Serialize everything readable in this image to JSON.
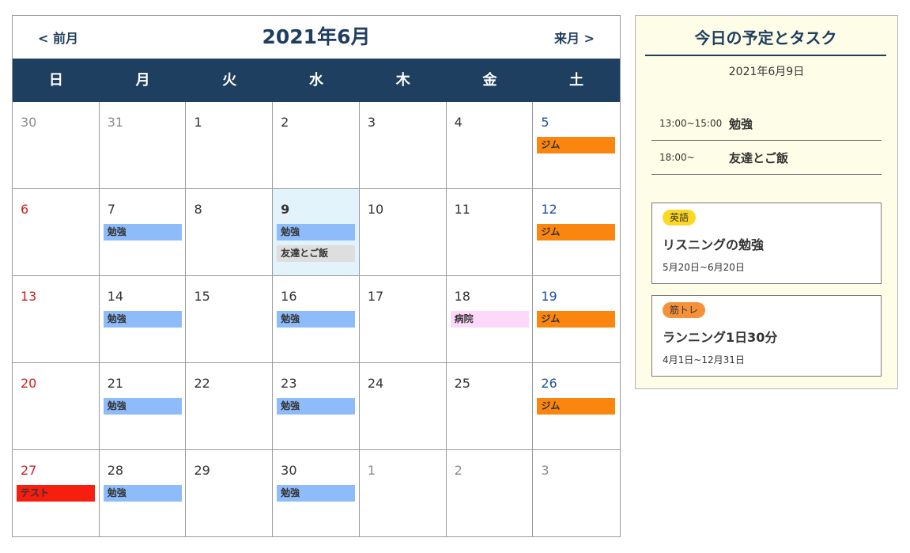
{
  "calendar": {
    "title": "2021年6月",
    "prev_label": "< 前月",
    "next_label": "来月 >",
    "weekdays": [
      "日",
      "月",
      "火",
      "水",
      "木",
      "金",
      "土"
    ],
    "weeks": [
      [
        {
          "day": "30",
          "other": true,
          "events": []
        },
        {
          "day": "31",
          "other": true,
          "events": []
        },
        {
          "day": "1",
          "events": []
        },
        {
          "day": "2",
          "events": []
        },
        {
          "day": "3",
          "events": []
        },
        {
          "day": "4",
          "events": []
        },
        {
          "day": "5",
          "events": [
            {
              "label": "ジム",
              "color": "#fb860f"
            }
          ]
        }
      ],
      [
        {
          "day": "6",
          "events": []
        },
        {
          "day": "7",
          "events": [
            {
              "label": "勉強",
              "color": "#8ebcfa"
            }
          ]
        },
        {
          "day": "8",
          "events": []
        },
        {
          "day": "9",
          "today": true,
          "events": [
            {
              "label": "勉強",
              "color": "#8ebcfa"
            },
            {
              "label": "友達とご飯",
              "color": "#dedede"
            }
          ]
        },
        {
          "day": "10",
          "events": []
        },
        {
          "day": "11",
          "events": []
        },
        {
          "day": "12",
          "events": [
            {
              "label": "ジム",
              "color": "#fb860f"
            }
          ]
        }
      ],
      [
        {
          "day": "13",
          "events": []
        },
        {
          "day": "14",
          "events": [
            {
              "label": "勉強",
              "color": "#8ebcfa"
            }
          ]
        },
        {
          "day": "15",
          "events": []
        },
        {
          "day": "16",
          "events": [
            {
              "label": "勉強",
              "color": "#8ebcfa"
            }
          ]
        },
        {
          "day": "17",
          "events": []
        },
        {
          "day": "18",
          "events": [
            {
              "label": "病院",
              "color": "#fcd9fb"
            }
          ]
        },
        {
          "day": "19",
          "events": [
            {
              "label": "ジム",
              "color": "#fb860f"
            }
          ]
        }
      ],
      [
        {
          "day": "20",
          "events": []
        },
        {
          "day": "21",
          "events": [
            {
              "label": "勉強",
              "color": "#8ebcfa"
            }
          ]
        },
        {
          "day": "22",
          "events": []
        },
        {
          "day": "23",
          "events": [
            {
              "label": "勉強",
              "color": "#8ebcfa"
            }
          ]
        },
        {
          "day": "24",
          "events": []
        },
        {
          "day": "25",
          "events": []
        },
        {
          "day": "26",
          "events": [
            {
              "label": "ジム",
              "color": "#fb860f"
            }
          ]
        }
      ],
      [
        {
          "day": "27",
          "events": [
            {
              "label": "テスト",
              "color": "#f51e0f"
            }
          ]
        },
        {
          "day": "28",
          "events": [
            {
              "label": "勉強",
              "color": "#8ebcfa"
            }
          ]
        },
        {
          "day": "29",
          "events": []
        },
        {
          "day": "30",
          "events": [
            {
              "label": "勉強",
              "color": "#8ebcfa"
            }
          ]
        },
        {
          "day": "1",
          "other": true,
          "events": []
        },
        {
          "day": "2",
          "other": true,
          "events": []
        },
        {
          "day": "3",
          "other": true,
          "events": []
        }
      ]
    ]
  },
  "panel": {
    "title": "今日の予定とタスク",
    "date": "2021年6月9日",
    "schedule": [
      {
        "time": "13:00~15:00",
        "title": "勉強"
      },
      {
        "time": "18:00~",
        "title": "友達とご飯"
      }
    ],
    "tasks": [
      {
        "tag": "英語",
        "tag_color": "#fcd823",
        "title": "リスニングの勉強",
        "range": "5月20日~6月20日"
      },
      {
        "tag": "筋トレ",
        "tag_color": "#f6913a",
        "title": "ランニング1日30分",
        "range": "4月1日~12月31日"
      }
    ]
  }
}
